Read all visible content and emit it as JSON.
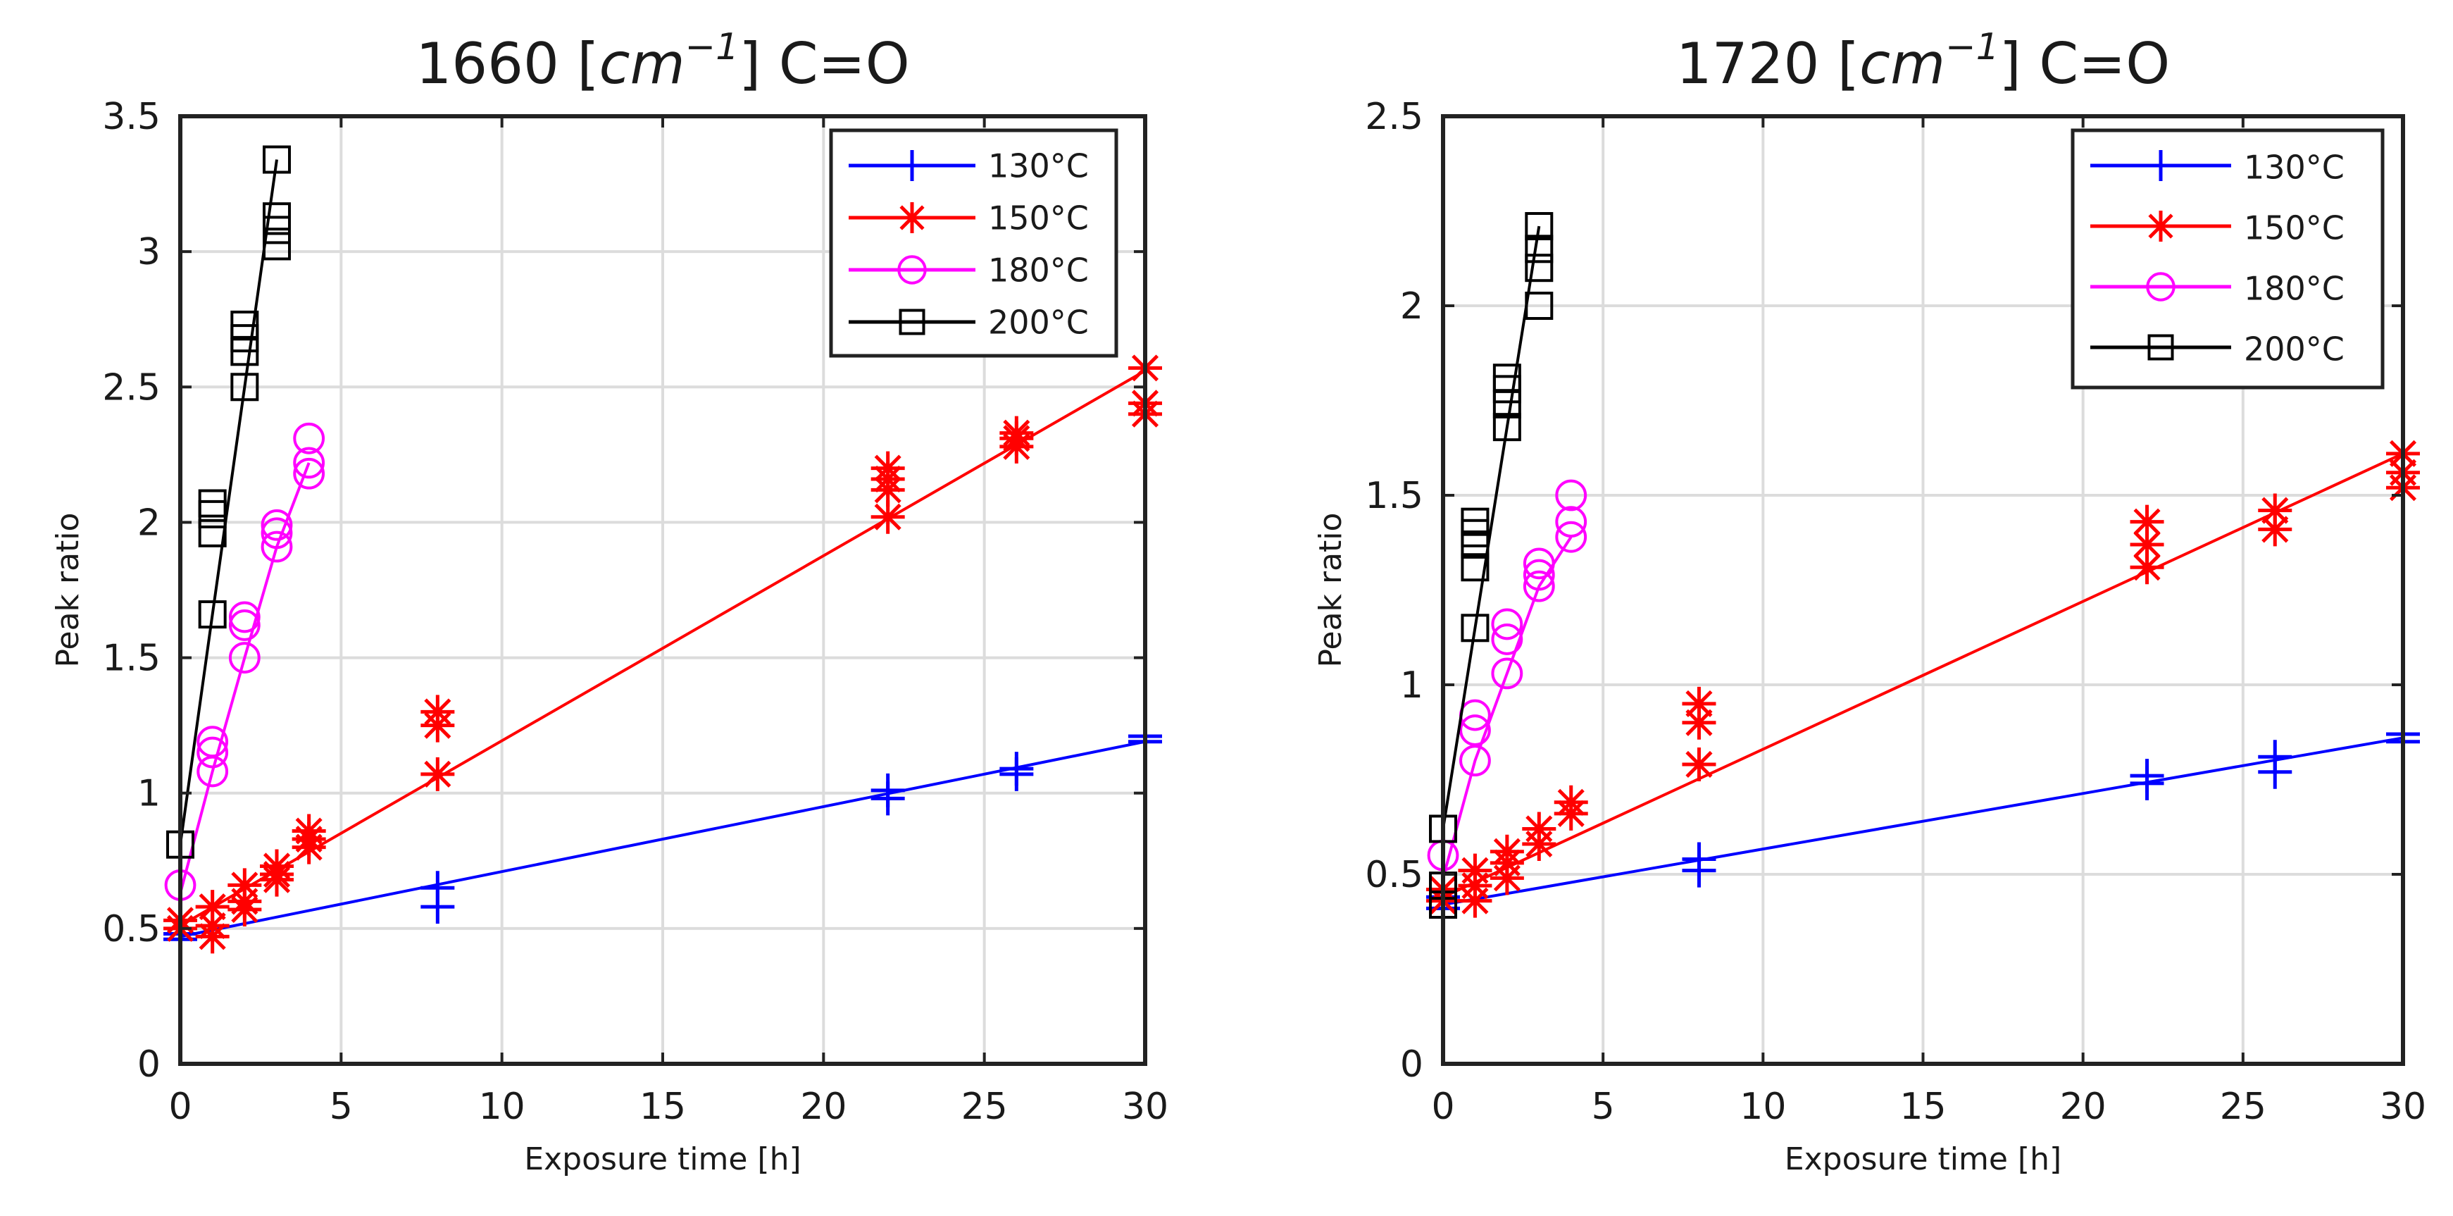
{
  "chart_data": [
    {
      "type": "line",
      "title_main": "1660 ",
      "title_unit_base": "cm",
      "title_unit_exp": "−1",
      "title_suffix": " C=O",
      "title": "1660 [cm^-1] C=O",
      "xlabel": "Exposure time [h]",
      "ylabel": "Peak ratio",
      "xlim": [
        0,
        30
      ],
      "ylim": [
        0,
        3.5
      ],
      "xticks": [
        0,
        5,
        10,
        15,
        20,
        25,
        30
      ],
      "yticks": [
        0,
        0.5,
        1,
        1.5,
        2,
        2.5,
        3,
        3.5
      ],
      "ytick_labels": [
        "0",
        "0.5",
        "1",
        "1.5",
        "2",
        "2.5",
        "3",
        "3.5"
      ],
      "grid": true,
      "legend_position": "top-right",
      "series": [
        {
          "name": "130°C",
          "color": "#0000ff",
          "marker": "plus",
          "fit": [
            [
              0,
              0.47
            ],
            [
              30,
              1.19
            ]
          ],
          "x": [
            0,
            0,
            8,
            8,
            22,
            22,
            26,
            26,
            30,
            30
          ],
          "y": [
            0.48,
            0.46,
            0.65,
            0.58,
            1.01,
            0.98,
            1.09,
            1.07,
            1.21,
            1.19
          ]
        },
        {
          "name": "150°C",
          "color": "#ff0000",
          "marker": "asterisk",
          "fit": [
            [
              0,
              0.51
            ],
            [
              30,
              2.56
            ]
          ],
          "x": [
            0,
            1,
            2,
            3,
            4,
            8,
            22,
            26,
            30,
            0,
            1,
            1,
            2,
            2,
            3,
            3,
            4,
            4,
            8,
            8,
            22,
            22,
            22,
            26,
            26,
            30,
            30
          ],
          "y": [
            0.53,
            0.58,
            0.66,
            0.73,
            0.8,
            1.07,
            2.02,
            2.31,
            2.57,
            0.5,
            0.47,
            0.51,
            0.57,
            0.6,
            0.68,
            0.7,
            0.83,
            0.86,
            1.25,
            1.3,
            2.12,
            2.16,
            2.2,
            2.28,
            2.33,
            2.4,
            2.44
          ]
        },
        {
          "name": "180°C",
          "color": "#ff00ff",
          "marker": "circle",
          "fit": [
            [
              0,
              0.63
            ],
            [
              1,
              1.08
            ],
            [
              2,
              1.5
            ],
            [
              3,
              1.91
            ],
            [
              4,
              2.22
            ]
          ],
          "x": [
            0,
            1,
            1,
            2,
            2,
            3,
            3,
            4,
            4,
            1,
            2,
            3,
            4
          ],
          "y": [
            0.66,
            1.08,
            1.15,
            1.5,
            1.62,
            1.91,
            1.96,
            2.18,
            2.22,
            1.19,
            1.65,
            1.99,
            2.31
          ]
        },
        {
          "name": "200°C",
          "color": "#000000",
          "marker": "square",
          "fit": [
            [
              0,
              0.81
            ],
            [
              1,
              1.66
            ],
            [
              2,
              2.5
            ],
            [
              3,
              3.34
            ]
          ],
          "x": [
            0,
            1,
            1,
            1,
            1,
            2,
            2,
            2,
            2,
            3,
            3,
            3,
            3
          ],
          "y": [
            0.81,
            1.66,
            1.96,
            2.03,
            2.07,
            2.5,
            2.63,
            2.68,
            2.73,
            3.02,
            3.08,
            3.13,
            3.34
          ]
        }
      ]
    },
    {
      "type": "line",
      "title_main": "1720 ",
      "title_unit_base": "cm",
      "title_unit_exp": "−1",
      "title_suffix": " C=O",
      "title": "1720 [cm^-1] C=O",
      "xlabel": "Exposure time [h]",
      "ylabel": "Peak ratio",
      "xlim": [
        0,
        30
      ],
      "ylim": [
        0,
        2.5
      ],
      "xticks": [
        0,
        5,
        10,
        15,
        20,
        25,
        30
      ],
      "yticks": [
        0,
        0.5,
        1,
        1.5,
        2,
        2.5
      ],
      "ytick_labels": [
        "0",
        "0.5",
        "1",
        "1.5",
        "2",
        "2.5"
      ],
      "grid": true,
      "legend_position": "top-right",
      "series": [
        {
          "name": "130°C",
          "color": "#0000ff",
          "marker": "plus",
          "fit": [
            [
              0,
              0.42
            ],
            [
              30,
              0.86
            ]
          ],
          "x": [
            0,
            0,
            8,
            8,
            22,
            22,
            26,
            26,
            30,
            30
          ],
          "y": [
            0.44,
            0.41,
            0.54,
            0.51,
            0.76,
            0.74,
            0.81,
            0.77,
            0.87,
            0.85
          ]
        },
        {
          "name": "150°C",
          "color": "#ff0000",
          "marker": "asterisk",
          "fit": [
            [
              0,
              0.44
            ],
            [
              30,
              1.61
            ]
          ],
          "x": [
            0,
            0,
            1,
            1,
            1,
            2,
            2,
            2,
            3,
            3,
            4,
            4,
            8,
            8,
            8,
            22,
            22,
            22,
            26,
            26,
            30,
            30,
            30
          ],
          "y": [
            0.46,
            0.43,
            0.43,
            0.47,
            0.51,
            0.49,
            0.53,
            0.56,
            0.58,
            0.62,
            0.66,
            0.69,
            0.79,
            0.9,
            0.95,
            1.31,
            1.37,
            1.43,
            1.41,
            1.46,
            1.52,
            1.56,
            1.61
          ]
        },
        {
          "name": "180°C",
          "color": "#ff00ff",
          "marker": "circle",
          "fit": [
            [
              0,
              0.49
            ],
            [
              1,
              0.8
            ],
            [
              2,
              1.03
            ],
            [
              3,
              1.26
            ],
            [
              4,
              1.39
            ]
          ],
          "x": [
            0,
            1,
            1,
            1,
            2,
            2,
            2,
            3,
            3,
            3,
            4,
            4,
            4
          ],
          "y": [
            0.55,
            0.8,
            0.88,
            0.92,
            1.03,
            1.12,
            1.16,
            1.26,
            1.29,
            1.32,
            1.39,
            1.43,
            1.5
          ]
        },
        {
          "name": "200°C",
          "color": "#000000",
          "marker": "square",
          "fit": [
            [
              0,
              0.62
            ],
            [
              1,
              1.15
            ],
            [
              2,
              1.68
            ],
            [
              3,
              2.21
            ]
          ],
          "x": [
            0,
            0,
            0,
            1,
            1,
            1,
            1,
            1,
            2,
            2,
            2,
            2,
            3,
            3,
            3,
            3
          ],
          "y": [
            0.62,
            0.47,
            0.42,
            1.15,
            1.31,
            1.37,
            1.4,
            1.43,
            1.68,
            1.74,
            1.78,
            1.81,
            2.0,
            2.1,
            2.15,
            2.21
          ]
        }
      ]
    }
  ]
}
